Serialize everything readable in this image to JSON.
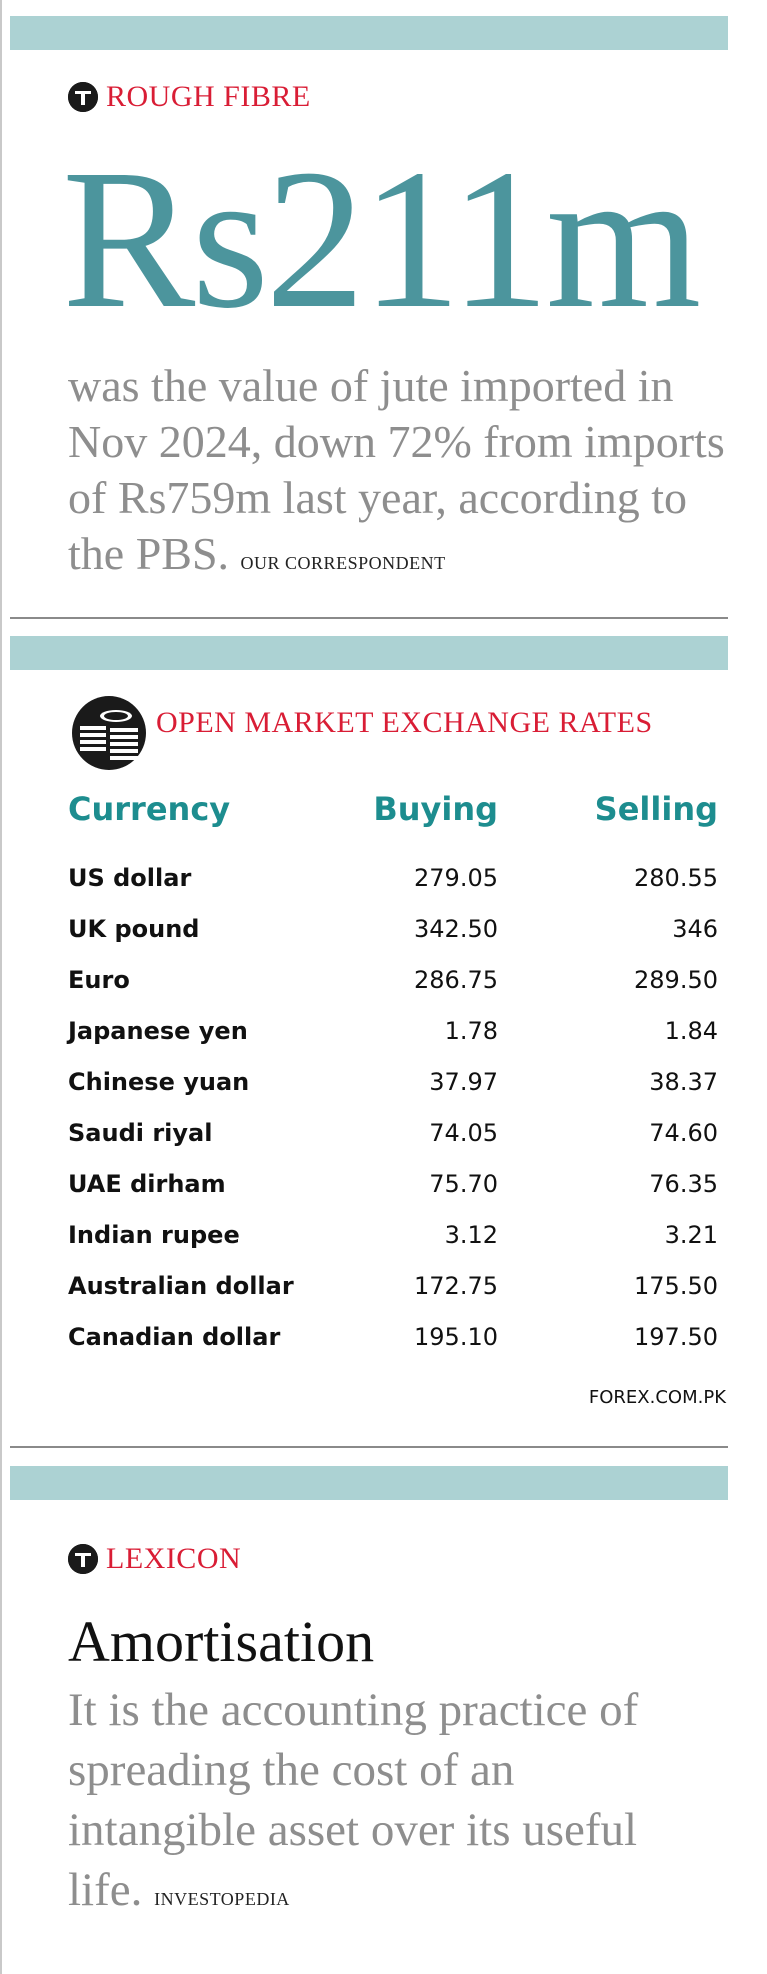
{
  "rough_fibre": {
    "kicker": "ROUGH FIBRE",
    "headline": "Rs211m",
    "body": "was the value of jute imported in Nov 2024, down 72% from imports of Rs759m last year, according to the PBS.",
    "credit": "OUR CORRESPONDENT"
  },
  "exchange": {
    "kicker": "OPEN MARKET EXCHANGE RATES",
    "icon": "coins-icon",
    "headers": {
      "currency": "Currency",
      "buying": "Buying",
      "selling": "Selling"
    },
    "rows": [
      {
        "currency": "US dollar",
        "buying": "279.05",
        "selling": "280.55"
      },
      {
        "currency": "UK pound",
        "buying": "342.50",
        "selling": "346"
      },
      {
        "currency": "Euro",
        "buying": "286.75",
        "selling": "289.50"
      },
      {
        "currency": "Japanese yen",
        "buying": "1.78",
        "selling": "1.84"
      },
      {
        "currency": "Chinese yuan",
        "buying": "37.97",
        "selling": "38.37"
      },
      {
        "currency": "Saudi riyal",
        "buying": "74.05",
        "selling": "74.60"
      },
      {
        "currency": "UAE dirham",
        "buying": "75.70",
        "selling": "76.35"
      },
      {
        "currency": "Indian rupee",
        "buying": "3.12",
        "selling": "3.21"
      },
      {
        "currency": "Australian dollar",
        "buying": "172.75",
        "selling": "175.50"
      },
      {
        "currency": "Canadian dollar",
        "buying": "195.10",
        "selling": "197.50"
      }
    ],
    "source": "FOREX.COM.PK"
  },
  "lexicon": {
    "kicker": "LEXICON",
    "term": "Amortisation",
    "definition": "It is the accounting practice of spreading the cost of an intangible asset over its useful life.",
    "credit": "INVESTOPEDIA"
  },
  "colors": {
    "band": "#acd2d3",
    "kicker_red": "#d91d35",
    "headline_teal": "#4c959d",
    "header_teal": "#1d8d8f",
    "grey_text": "#8e8e8e"
  }
}
